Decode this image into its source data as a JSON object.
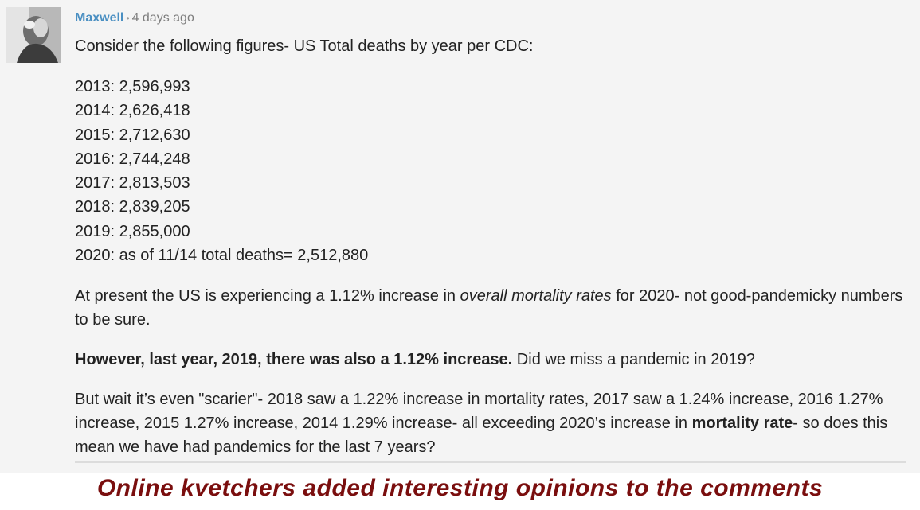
{
  "comment": {
    "author": "Maxwell",
    "separator": "•",
    "timestamp": "4 days ago",
    "intro": "Consider the following figures- US Total deaths by year per CDC:",
    "years": [
      "2013: 2,596,993",
      "2014: 2,626,418",
      "2015: 2,712,630",
      "2016: 2,744,248",
      "2017: 2,813,503",
      "2018: 2,839,205",
      "2019: 2,855,000",
      "2020: as of 11/14 total deaths= 2,512,880"
    ],
    "p1_a": "At present the US is experiencing a 1.12% increase in ",
    "p1_em": "overall mortality rates",
    "p1_b": " for 2020- not good-pandemicky numbers to be sure.",
    "p2_strong": "However, last year, 2019, there was also a 1.12% increase.",
    "p2_rest": " Did we miss a pandemic in 2019?",
    "p3_a": "But wait it’s even \"scarier\"- 2018 saw a 1.22% increase in mortality rates, 2017 saw a 1.24% increase, 2016 1.27% increase, 2015 1.27% increase, 2014 1.29% increase- all exceeding 2020’s increase in ",
    "p3_strong1": "mortality rate",
    "p3_b": "- so does this mean we have had pandemics for the last 7 years?"
  },
  "caption": "Online kvetchers added interesting opinions to the comments",
  "colors": {
    "author": "#4a8fc2",
    "caption": "#7a0e0e",
    "card_background": "#f4f4f4"
  }
}
